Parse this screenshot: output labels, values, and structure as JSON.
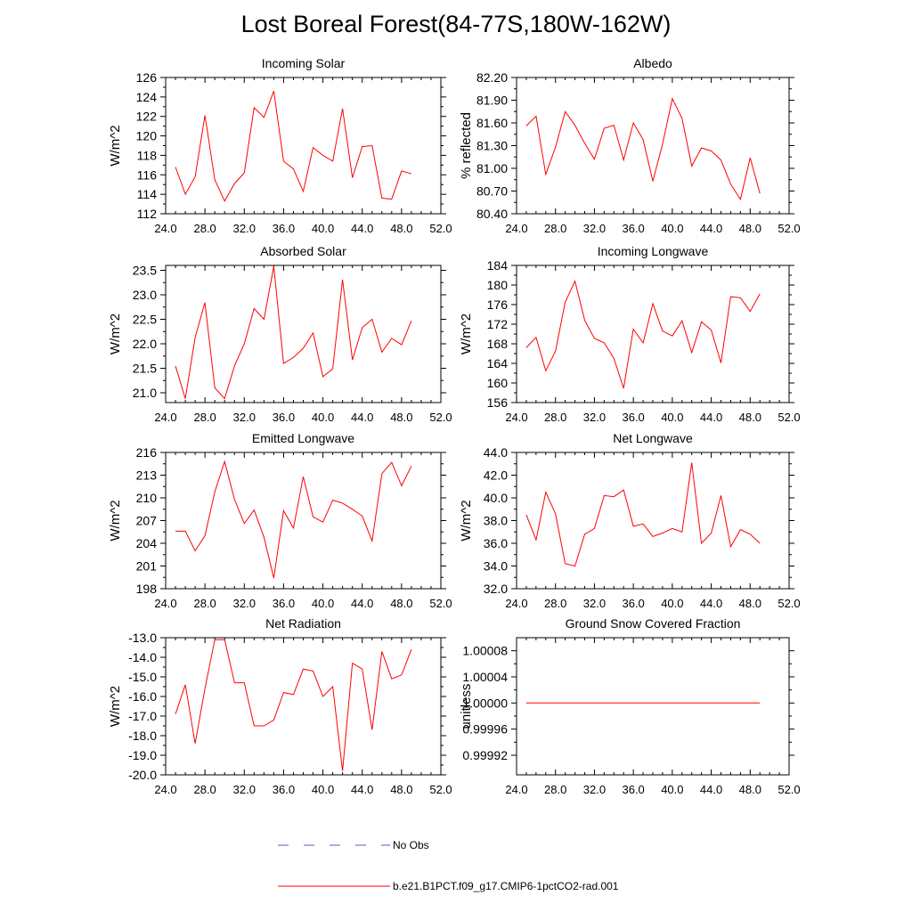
{
  "title": "Lost Boreal Forest(84-77S,180W-162W)",
  "legend": {
    "no_obs_label": "No Obs",
    "no_obs_color": "#4a5fc1",
    "model_label": "b.e21.B1PCT.f09_g17.CMIP6-1pctCO2-rad.001",
    "model_color": "#ff0000"
  },
  "chart_data": [
    {
      "type": "line",
      "title": "Incoming Solar",
      "ylabel": "W/m^2",
      "xlim": [
        24,
        52
      ],
      "xticks": [
        24,
        28,
        32,
        36,
        40,
        44,
        48,
        52
      ],
      "xtick_labels": [
        "24.0",
        "28.0",
        "32.0",
        "36.0",
        "40.0",
        "44.0",
        "48.0",
        "52.0"
      ],
      "ylim": [
        112,
        126
      ],
      "yticks": [
        112,
        114,
        116,
        118,
        120,
        122,
        124,
        126
      ],
      "ytick_labels": [
        "112",
        "114",
        "116",
        "118",
        "120",
        "122",
        "124",
        "126"
      ],
      "x": [
        25,
        26,
        27,
        28,
        29,
        30,
        31,
        32,
        33,
        34,
        35,
        36,
        37,
        38,
        39,
        40,
        41,
        42,
        43,
        44,
        45,
        46,
        47,
        48,
        49
      ],
      "series": [
        {
          "values": [
            116.8,
            114.0,
            115.8,
            122.1,
            115.5,
            113.3,
            115.1,
            116.2,
            122.9,
            121.9,
            124.6,
            117.4,
            116.6,
            114.3,
            118.8,
            118.0,
            117.4,
            122.8,
            115.7,
            118.9,
            119.0,
            113.6,
            113.5,
            116.4,
            116.1
          ]
        }
      ]
    },
    {
      "type": "line",
      "title": "Albedo",
      "ylabel": "% reflected",
      "xlim": [
        24,
        52
      ],
      "xticks": [
        24,
        28,
        32,
        36,
        40,
        44,
        48,
        52
      ],
      "xtick_labels": [
        "24.0",
        "28.0",
        "32.0",
        "36.0",
        "40.0",
        "44.0",
        "48.0",
        "52.0"
      ],
      "ylim": [
        80.4,
        82.2
      ],
      "yticks": [
        80.4,
        80.7,
        81.0,
        81.3,
        81.6,
        81.9,
        82.2
      ],
      "ytick_labels": [
        "80.40",
        "80.70",
        "81.00",
        "81.30",
        "81.60",
        "81.90",
        "82.20"
      ],
      "x": [
        25,
        26,
        27,
        28,
        29,
        30,
        31,
        32,
        33,
        34,
        35,
        36,
        37,
        38,
        39,
        40,
        41,
        42,
        43,
        44,
        45,
        46,
        47,
        48,
        49
      ],
      "series": [
        {
          "values": [
            81.56,
            81.69,
            80.92,
            81.28,
            81.75,
            81.57,
            81.33,
            81.12,
            81.53,
            81.57,
            81.11,
            81.6,
            81.38,
            80.83,
            81.32,
            81.92,
            81.66,
            81.03,
            81.27,
            81.23,
            81.11,
            80.79,
            80.59,
            81.14,
            80.67
          ]
        }
      ]
    },
    {
      "type": "line",
      "title": "Absorbed Solar",
      "ylabel": "W/m^2",
      "xlim": [
        24,
        52
      ],
      "xticks": [
        24,
        28,
        32,
        36,
        40,
        44,
        48,
        52
      ],
      "xtick_labels": [
        "24.0",
        "28.0",
        "32.0",
        "36.0",
        "40.0",
        "44.0",
        "48.0",
        "52.0"
      ],
      "ylim": [
        20.8,
        23.6
      ],
      "yticks": [
        21.0,
        21.5,
        22.0,
        22.5,
        23.0,
        23.5
      ],
      "ytick_labels": [
        "21.0",
        "21.5",
        "22.0",
        "22.5",
        "23.0",
        "23.5"
      ],
      "x": [
        25,
        26,
        27,
        28,
        29,
        30,
        31,
        32,
        33,
        34,
        35,
        36,
        37,
        38,
        39,
        40,
        41,
        42,
        43,
        44,
        45,
        46,
        47,
        48,
        49
      ],
      "series": [
        {
          "values": [
            21.55,
            20.88,
            22.13,
            22.84,
            21.1,
            20.88,
            21.55,
            22.0,
            22.72,
            22.5,
            23.58,
            21.6,
            21.72,
            21.91,
            22.22,
            21.33,
            21.49,
            23.31,
            21.67,
            22.33,
            22.5,
            21.83,
            22.11,
            21.98,
            22.47
          ]
        }
      ]
    },
    {
      "type": "line",
      "title": "Incoming Longwave",
      "ylabel": "W/m^2",
      "xlim": [
        24,
        52
      ],
      "xticks": [
        24,
        28,
        32,
        36,
        40,
        44,
        48,
        52
      ],
      "xtick_labels": [
        "24.0",
        "28.0",
        "32.0",
        "36.0",
        "40.0",
        "44.0",
        "48.0",
        "52.0"
      ],
      "ylim": [
        156,
        184
      ],
      "yticks": [
        156,
        160,
        164,
        168,
        172,
        176,
        180,
        184
      ],
      "ytick_labels": [
        "156",
        "160",
        "164",
        "168",
        "172",
        "176",
        "180",
        "184"
      ],
      "x": [
        25,
        26,
        27,
        28,
        29,
        30,
        31,
        32,
        33,
        34,
        35,
        36,
        37,
        38,
        39,
        40,
        41,
        42,
        43,
        44,
        45,
        46,
        47,
        48,
        49
      ],
      "series": [
        {
          "values": [
            167.2,
            169.3,
            162.5,
            166.5,
            176.5,
            180.8,
            172.8,
            169.1,
            168.2,
            165.0,
            158.9,
            171.0,
            168.2,
            176.2,
            170.6,
            169.6,
            172.7,
            166.2,
            172.5,
            170.8,
            164.1,
            177.6,
            177.4,
            174.6,
            178.2
          ]
        }
      ]
    },
    {
      "type": "line",
      "title": "Emitted Longwave",
      "ylabel": "W/m^2",
      "xlim": [
        24,
        52
      ],
      "xticks": [
        24,
        28,
        32,
        36,
        40,
        44,
        48,
        52
      ],
      "xtick_labels": [
        "24.0",
        "28.0",
        "32.0",
        "36.0",
        "40.0",
        "44.0",
        "48.0",
        "52.0"
      ],
      "ylim": [
        198,
        216
      ],
      "yticks": [
        198,
        201,
        204,
        207,
        210,
        213,
        216
      ],
      "ytick_labels": [
        "198",
        "201",
        "204",
        "207",
        "210",
        "213",
        "216"
      ],
      "x": [
        25,
        26,
        27,
        28,
        29,
        30,
        31,
        32,
        33,
        34,
        35,
        36,
        37,
        38,
        39,
        40,
        41,
        42,
        43,
        44,
        45,
        46,
        47,
        48,
        49
      ],
      "series": [
        {
          "values": [
            205.6,
            205.6,
            203.0,
            205.0,
            210.8,
            214.8,
            209.8,
            206.6,
            208.4,
            204.8,
            199.4,
            208.3,
            206.0,
            212.8,
            207.5,
            206.8,
            209.7,
            209.3,
            208.5,
            207.6,
            204.3,
            213.2,
            214.7,
            211.6,
            214.2
          ]
        }
      ]
    },
    {
      "type": "line",
      "title": "Net Longwave",
      "ylabel": "W/m^2",
      "xlim": [
        24,
        52
      ],
      "xticks": [
        24,
        28,
        32,
        36,
        40,
        44,
        48,
        52
      ],
      "xtick_labels": [
        "24.0",
        "28.0",
        "32.0",
        "36.0",
        "40.0",
        "44.0",
        "48.0",
        "52.0"
      ],
      "ylim": [
        32,
        44
      ],
      "yticks": [
        32,
        34,
        36,
        38,
        40,
        42,
        44
      ],
      "ytick_labels": [
        "32.0",
        "34.0",
        "36.0",
        "38.0",
        "40.0",
        "42.0",
        "44.0"
      ],
      "x": [
        25,
        26,
        27,
        28,
        29,
        30,
        31,
        32,
        33,
        34,
        35,
        36,
        37,
        38,
        39,
        40,
        41,
        42,
        43,
        44,
        45,
        46,
        47,
        48,
        49
      ],
      "series": [
        {
          "values": [
            38.5,
            36.3,
            40.5,
            38.6,
            34.2,
            34.0,
            36.8,
            37.3,
            40.2,
            40.1,
            40.7,
            37.5,
            37.7,
            36.6,
            36.9,
            37.3,
            37.0,
            43.1,
            36.0,
            36.9,
            40.2,
            35.7,
            37.2,
            36.8,
            36.0
          ]
        }
      ]
    },
    {
      "type": "line",
      "title": "Net Radiation",
      "ylabel": "W/m^2",
      "xlim": [
        24,
        52
      ],
      "xticks": [
        24,
        28,
        32,
        36,
        40,
        44,
        48,
        52
      ],
      "xtick_labels": [
        "24.0",
        "28.0",
        "32.0",
        "36.0",
        "40.0",
        "44.0",
        "48.0",
        "52.0"
      ],
      "ylim": [
        -20,
        -13
      ],
      "yticks": [
        -20,
        -19,
        -18,
        -17,
        -16,
        -15,
        -14,
        -13
      ],
      "ytick_labels": [
        "-20.0",
        "-19.0",
        "-18.0",
        "-17.0",
        "-16.0",
        "-15.0",
        "-14.0",
        "-13.0"
      ],
      "x": [
        25,
        26,
        27,
        28,
        29,
        30,
        31,
        32,
        33,
        34,
        35,
        36,
        37,
        38,
        39,
        40,
        41,
        42,
        43,
        44,
        45,
        46,
        47,
        48,
        49
      ],
      "series": [
        {
          "values": [
            -16.9,
            -15.4,
            -18.4,
            -15.6,
            -13.1,
            -13.1,
            -15.3,
            -15.3,
            -17.5,
            -17.5,
            -17.2,
            -15.8,
            -15.9,
            -14.6,
            -14.7,
            -16.0,
            -15.5,
            -19.8,
            -14.3,
            -14.6,
            -17.7,
            -13.7,
            -15.1,
            -14.9,
            -13.6
          ]
        }
      ]
    },
    {
      "type": "line",
      "title": "Ground Snow Covered Fraction",
      "ylabel": "unitless",
      "xlim": [
        24,
        52
      ],
      "xticks": [
        24,
        28,
        32,
        36,
        40,
        44,
        48,
        52
      ],
      "xtick_labels": [
        "24.0",
        "28.0",
        "32.0",
        "36.0",
        "40.0",
        "44.0",
        "48.0",
        "52.0"
      ],
      "ylim": [
        0.99989,
        1.0001
      ],
      "yticks": [
        0.99992,
        0.99996,
        1.0,
        1.00004,
        1.00008
      ],
      "ytick_labels": [
        "0.99992",
        "0.99996",
        "1.00000",
        "1.00004",
        "1.00008"
      ],
      "x": [
        25,
        26,
        27,
        28,
        29,
        30,
        31,
        32,
        33,
        34,
        35,
        36,
        37,
        38,
        39,
        40,
        41,
        42,
        43,
        44,
        45,
        46,
        47,
        48,
        49
      ],
      "series": [
        {
          "values": [
            1,
            1,
            1,
            1,
            1,
            1,
            1,
            1,
            1,
            1,
            1,
            1,
            1,
            1,
            1,
            1,
            1,
            1,
            1,
            1,
            1,
            1,
            1,
            1,
            1
          ]
        }
      ]
    }
  ]
}
